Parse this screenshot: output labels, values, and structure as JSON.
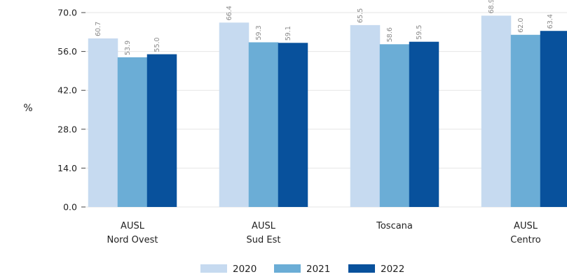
{
  "chart_data": {
    "type": "bar",
    "title": "",
    "xlabel": "",
    "ylabel": "%",
    "ylim": [
      0,
      70
    ],
    "yticks": [
      "0.0",
      "14.0",
      "28.0",
      "42.0",
      "56.0",
      "70.0"
    ],
    "categories": [
      [
        "AUSL",
        "Nord Ovest"
      ],
      [
        "AUSL",
        "Sud Est"
      ],
      [
        "Toscana"
      ],
      [
        "AUSL",
        "Centro"
      ]
    ],
    "series": [
      {
        "name": "2020",
        "color": "#c6daf0",
        "values": [
          60.7,
          66.4,
          65.5,
          68.9
        ]
      },
      {
        "name": "2021",
        "color": "#6badd6",
        "values": [
          53.9,
          59.3,
          58.6,
          62.0
        ]
      },
      {
        "name": "2022",
        "color": "#08519c",
        "values": [
          55.0,
          59.1,
          59.5,
          63.4
        ]
      }
    ],
    "grid": true,
    "legend_position": "bottom"
  }
}
